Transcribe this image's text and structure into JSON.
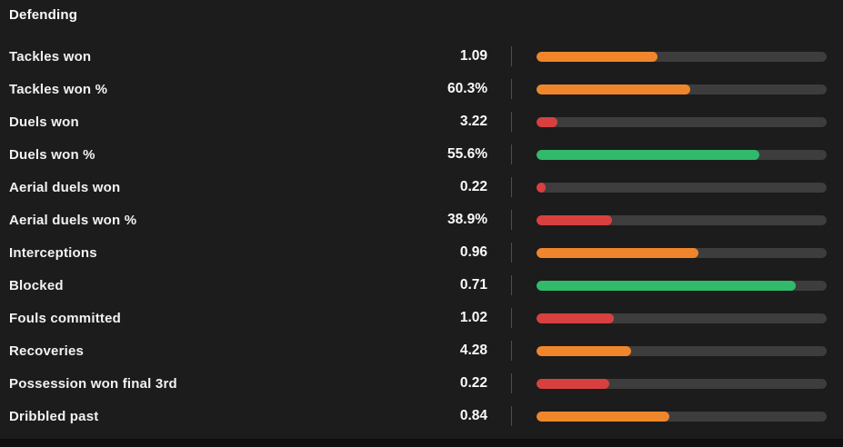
{
  "title": "Defending",
  "colors": {
    "background": "#1c1c1c",
    "bottom_strip": "#0f0f0f",
    "track": "#3d3d3d",
    "separator": "#4e4e4e",
    "text": "#fafafa",
    "orange": "#f0862b",
    "red": "#d84040",
    "green": "#31ba6b"
  },
  "rows": [
    {
      "label": "Tackles won",
      "value": "1.09",
      "color": "orange",
      "bar_percent": 41.7
    },
    {
      "label": "Tackles won %",
      "value": "60.3%",
      "color": "orange",
      "bar_percent": 53.0
    },
    {
      "label": "Duels won",
      "value": "3.22",
      "color": "red",
      "bar_percent": 7.2
    },
    {
      "label": "Duels won %",
      "value": "55.6%",
      "color": "green",
      "bar_percent": 76.8
    },
    {
      "label": "Aerial duels won",
      "value": "0.22",
      "color": "red",
      "bar_percent": 3.1
    },
    {
      "label": "Aerial duels won %",
      "value": "38.9%",
      "color": "red",
      "bar_percent": 26.0
    },
    {
      "label": "Interceptions",
      "value": "0.96",
      "color": "orange",
      "bar_percent": 55.8
    },
    {
      "label": "Blocked",
      "value": "0.71",
      "color": "green",
      "bar_percent": 89.3
    },
    {
      "label": "Fouls committed",
      "value": "1.02",
      "color": "red",
      "bar_percent": 26.6
    },
    {
      "label": "Recoveries",
      "value": "4.28",
      "color": "orange",
      "bar_percent": 32.6
    },
    {
      "label": "Possession won final 3rd",
      "value": "0.22",
      "color": "red",
      "bar_percent": 25.1
    },
    {
      "label": "Dribbled past",
      "value": "0.84",
      "color": "orange",
      "bar_percent": 45.8
    }
  ],
  "chart_data": {
    "type": "bar",
    "orientation": "horizontal",
    "title": "Defending",
    "categories": [
      "Tackles won",
      "Tackles won %",
      "Duels won",
      "Duels won %",
      "Aerial duels won",
      "Aerial duels won %",
      "Interceptions",
      "Blocked",
      "Fouls committed",
      "Recoveries",
      "Possession won final 3rd",
      "Dribbled past"
    ],
    "values": [
      1.09,
      60.3,
      3.22,
      55.6,
      0.22,
      38.9,
      0.96,
      0.71,
      1.02,
      4.28,
      0.22,
      0.84
    ],
    "value_labels": [
      "1.09",
      "60.3%",
      "3.22",
      "55.6%",
      "0.22",
      "38.9%",
      "0.96",
      "0.71",
      "1.02",
      "4.28",
      "0.22",
      "0.84"
    ],
    "bar_fill_percent": [
      41.7,
      53.0,
      7.2,
      76.8,
      3.1,
      26.0,
      55.8,
      89.3,
      26.6,
      32.6,
      25.1,
      45.8
    ],
    "bar_colors": [
      "orange",
      "orange",
      "red",
      "green",
      "red",
      "red",
      "orange",
      "green",
      "red",
      "orange",
      "red",
      "orange"
    ],
    "xlim": [
      0,
      100
    ],
    "grid": false,
    "legend": false
  }
}
